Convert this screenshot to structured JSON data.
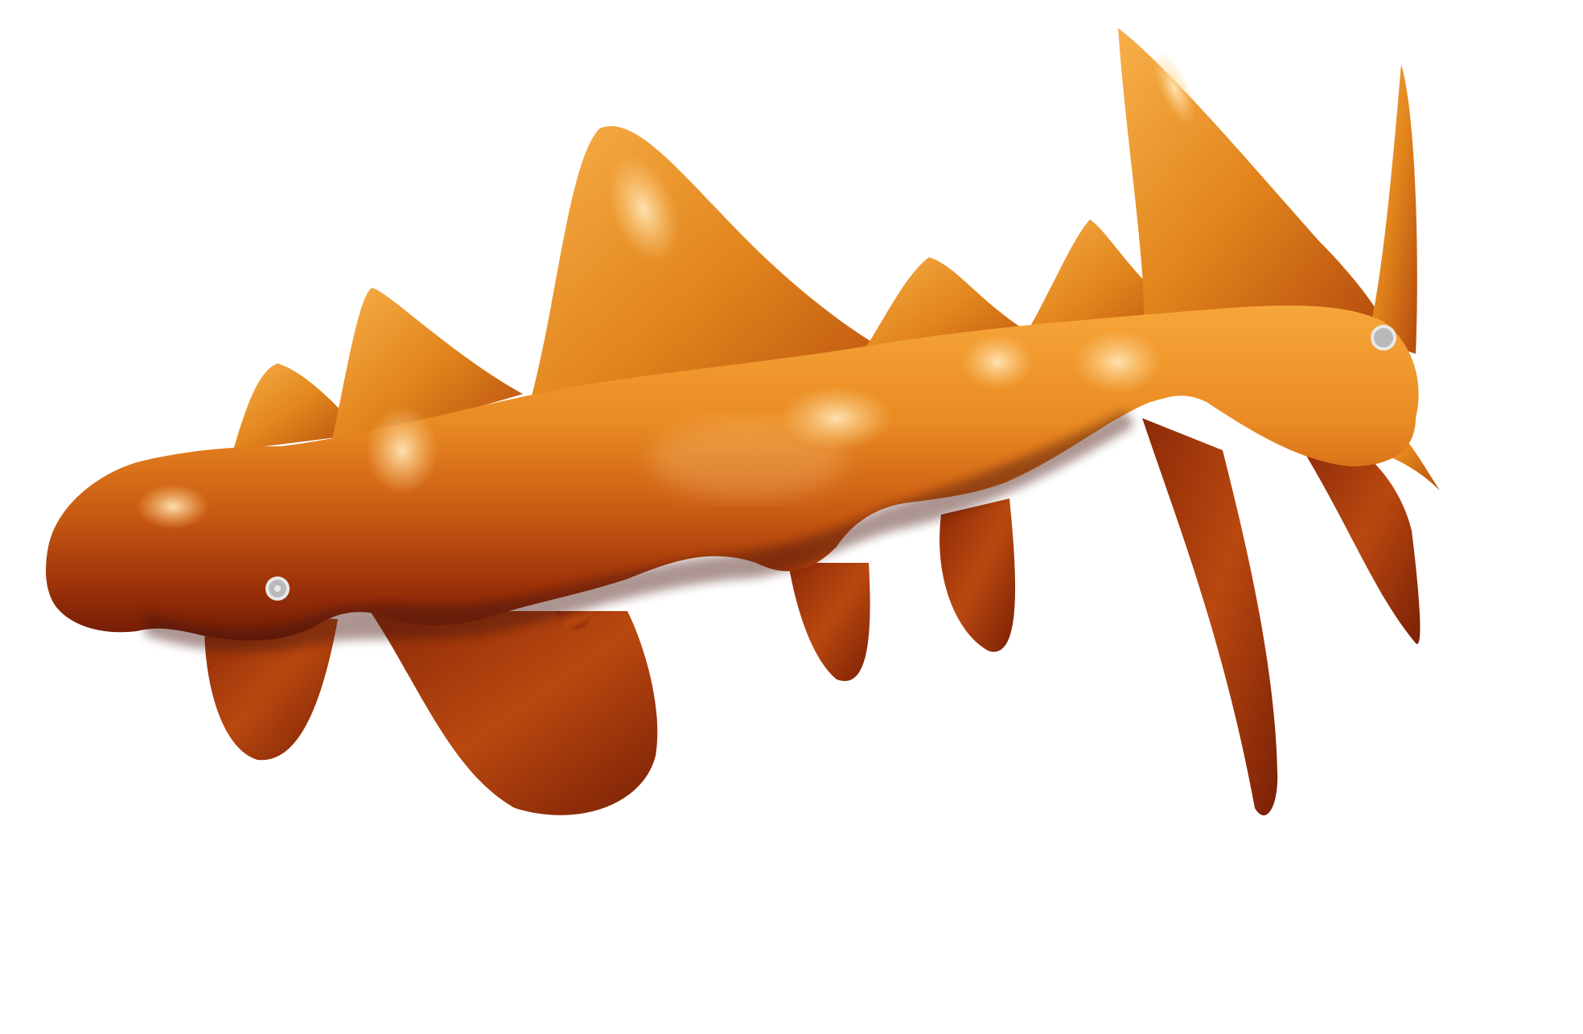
{
  "viewport": {
    "background": "#ffffff"
  },
  "shape": {
    "kind": "smooth 3D blob with spikes",
    "colors": {
      "light": "#f7a63a",
      "mid": "#e07a18",
      "dark": "#a8380b",
      "deep": "#6e1a06",
      "highlight": "#ffe2b0",
      "shadow": "#4a120a"
    }
  },
  "handles": {
    "count": 2,
    "fill": "#b9b9b9",
    "stroke": "#e9e9e9",
    "icon": "control-point-icon"
  }
}
